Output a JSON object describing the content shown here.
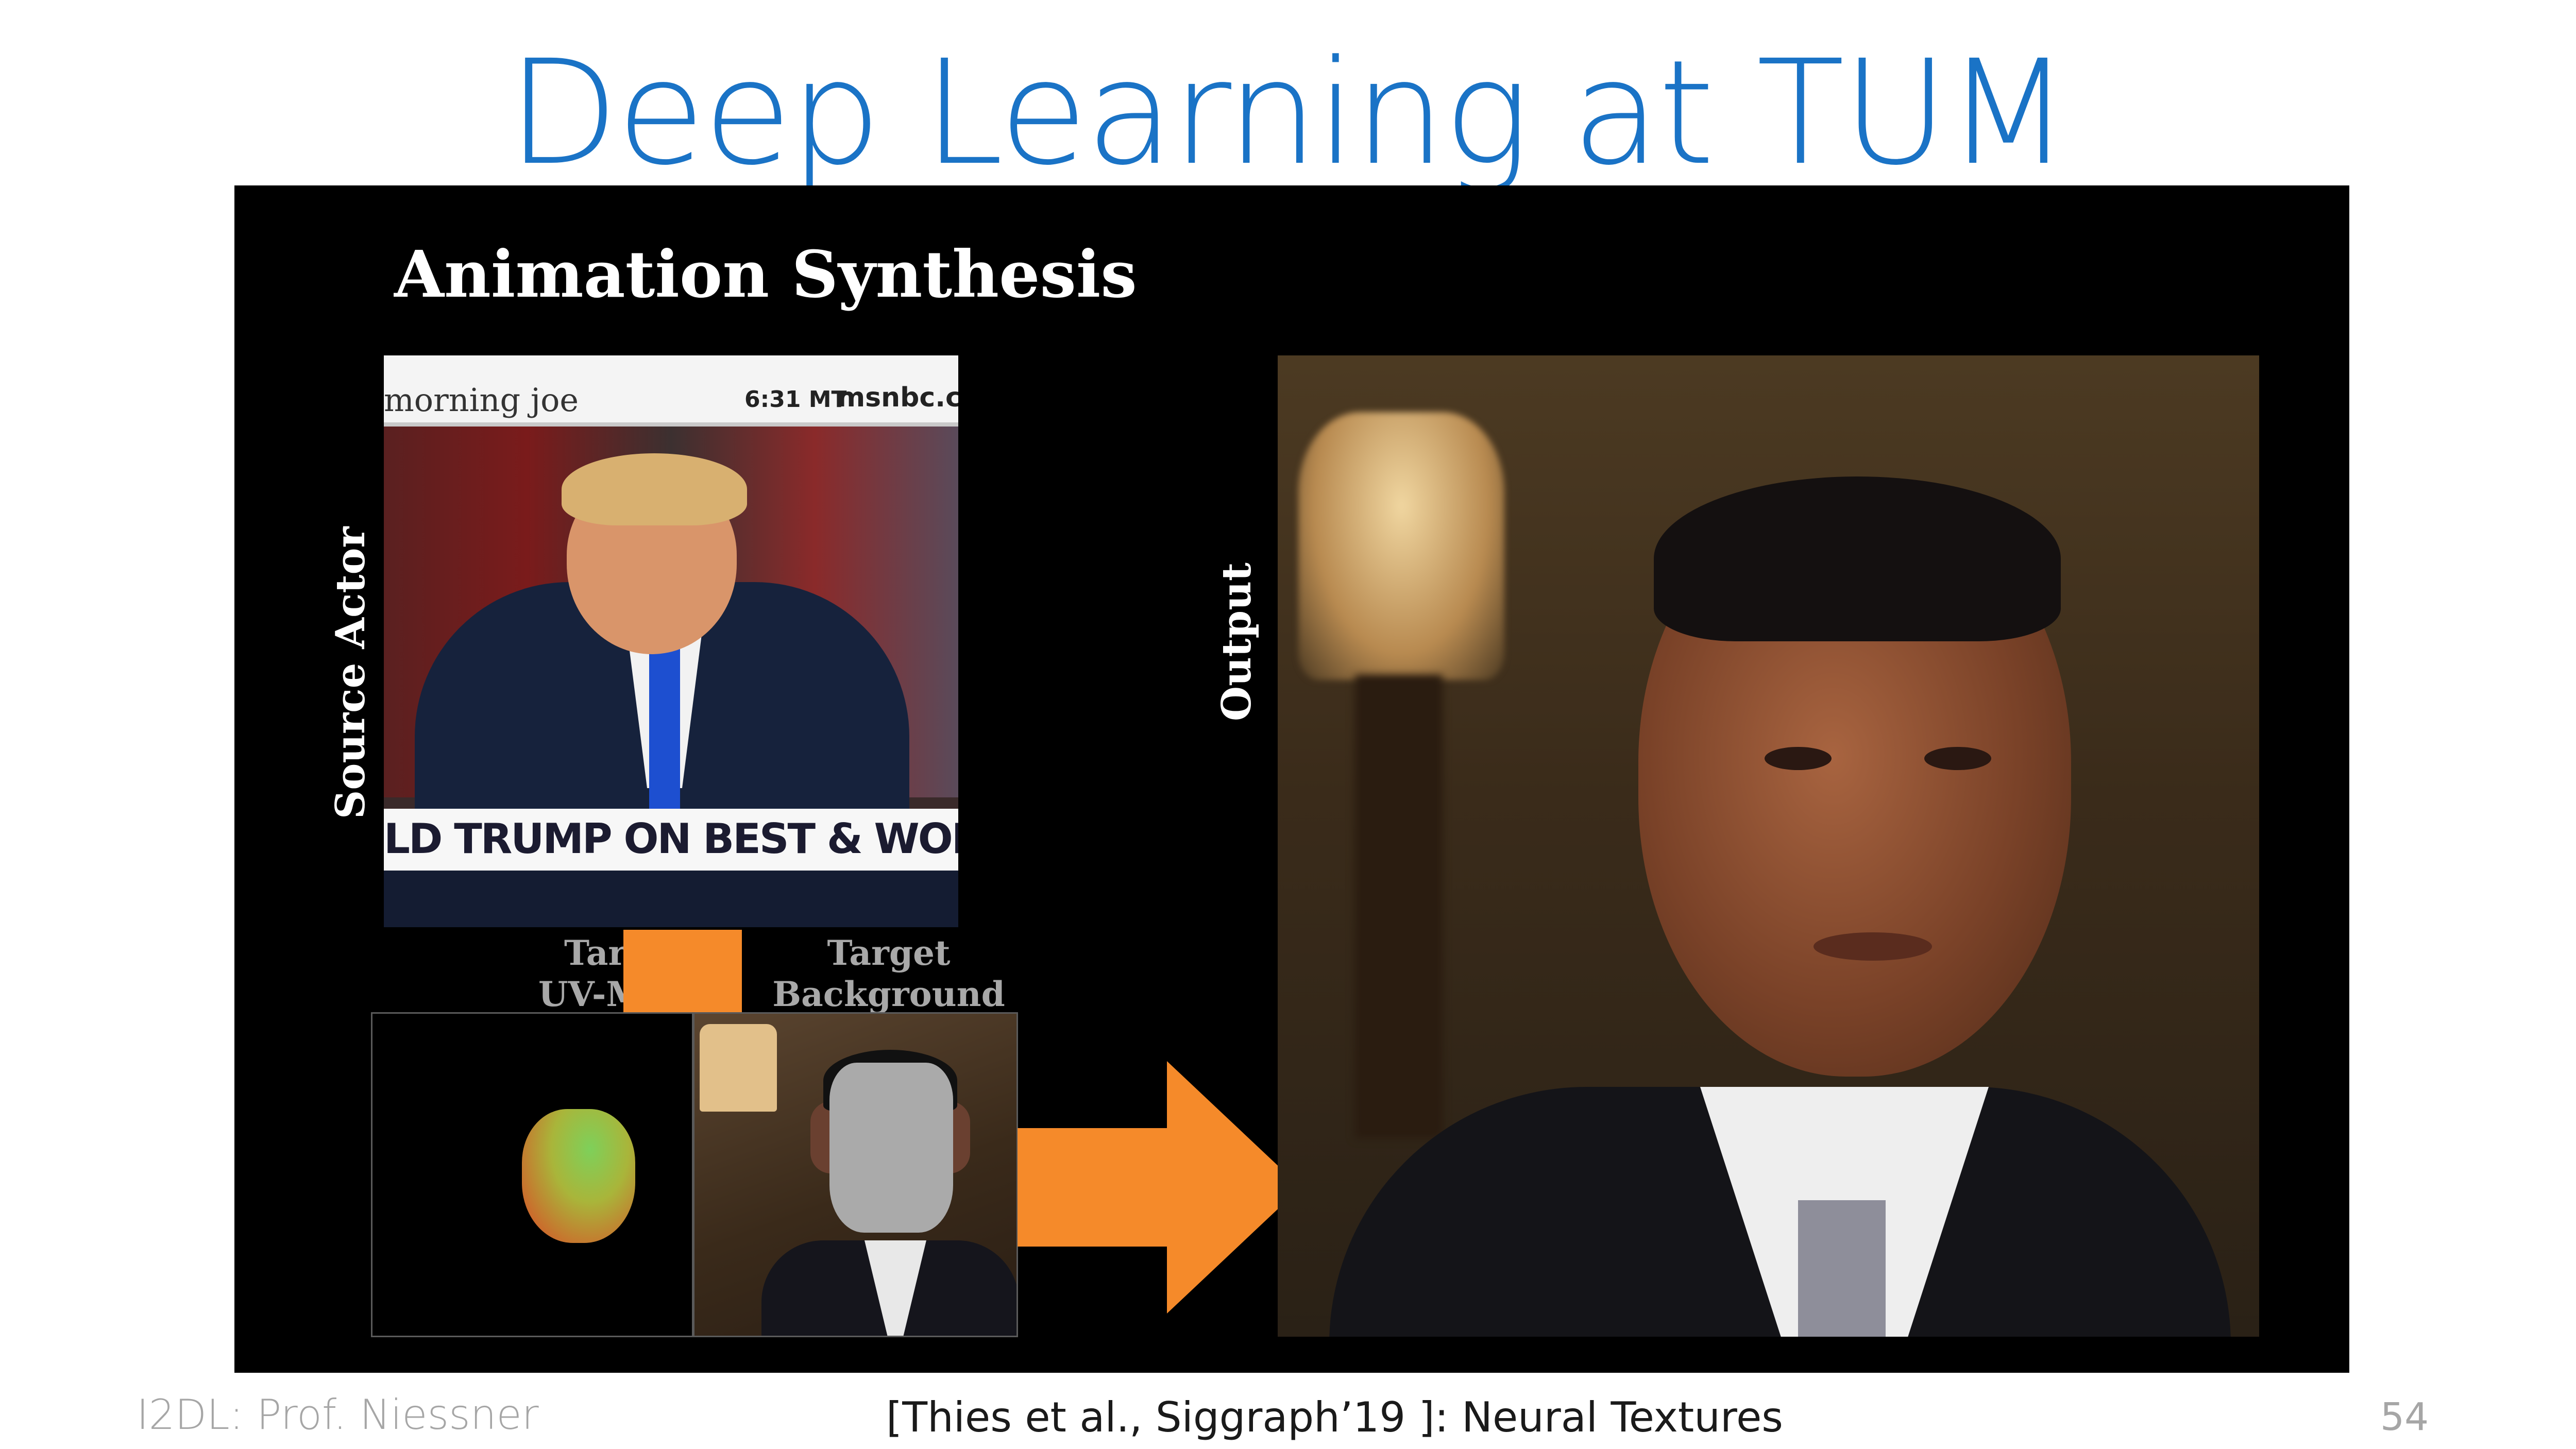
{
  "slide": {
    "title": "Deep Learning at TUM",
    "footer_left": "I2DL: Prof. Niessner",
    "footer_center": "[Thies et al., Siggraph’19 ]: Neural Textures",
    "page_number": "54"
  },
  "video": {
    "heading": "Animation Synthesis",
    "source_label": "Source Actor",
    "output_label": "Output",
    "uv_label_line1": "Target",
    "uv_label_line2": "UV-Map",
    "bg_label_line1": "Target",
    "bg_label_line2": "Background",
    "tv": {
      "show": "morning joe",
      "time": "6:31 MT",
      "network": "msnbc.com",
      "banner": "LD TRUMP ON BEST & WORST PRESI"
    }
  },
  "colors": {
    "title": "#1a73c6",
    "accent_orange": "#f58a2a",
    "panel_bg": "#000000"
  }
}
